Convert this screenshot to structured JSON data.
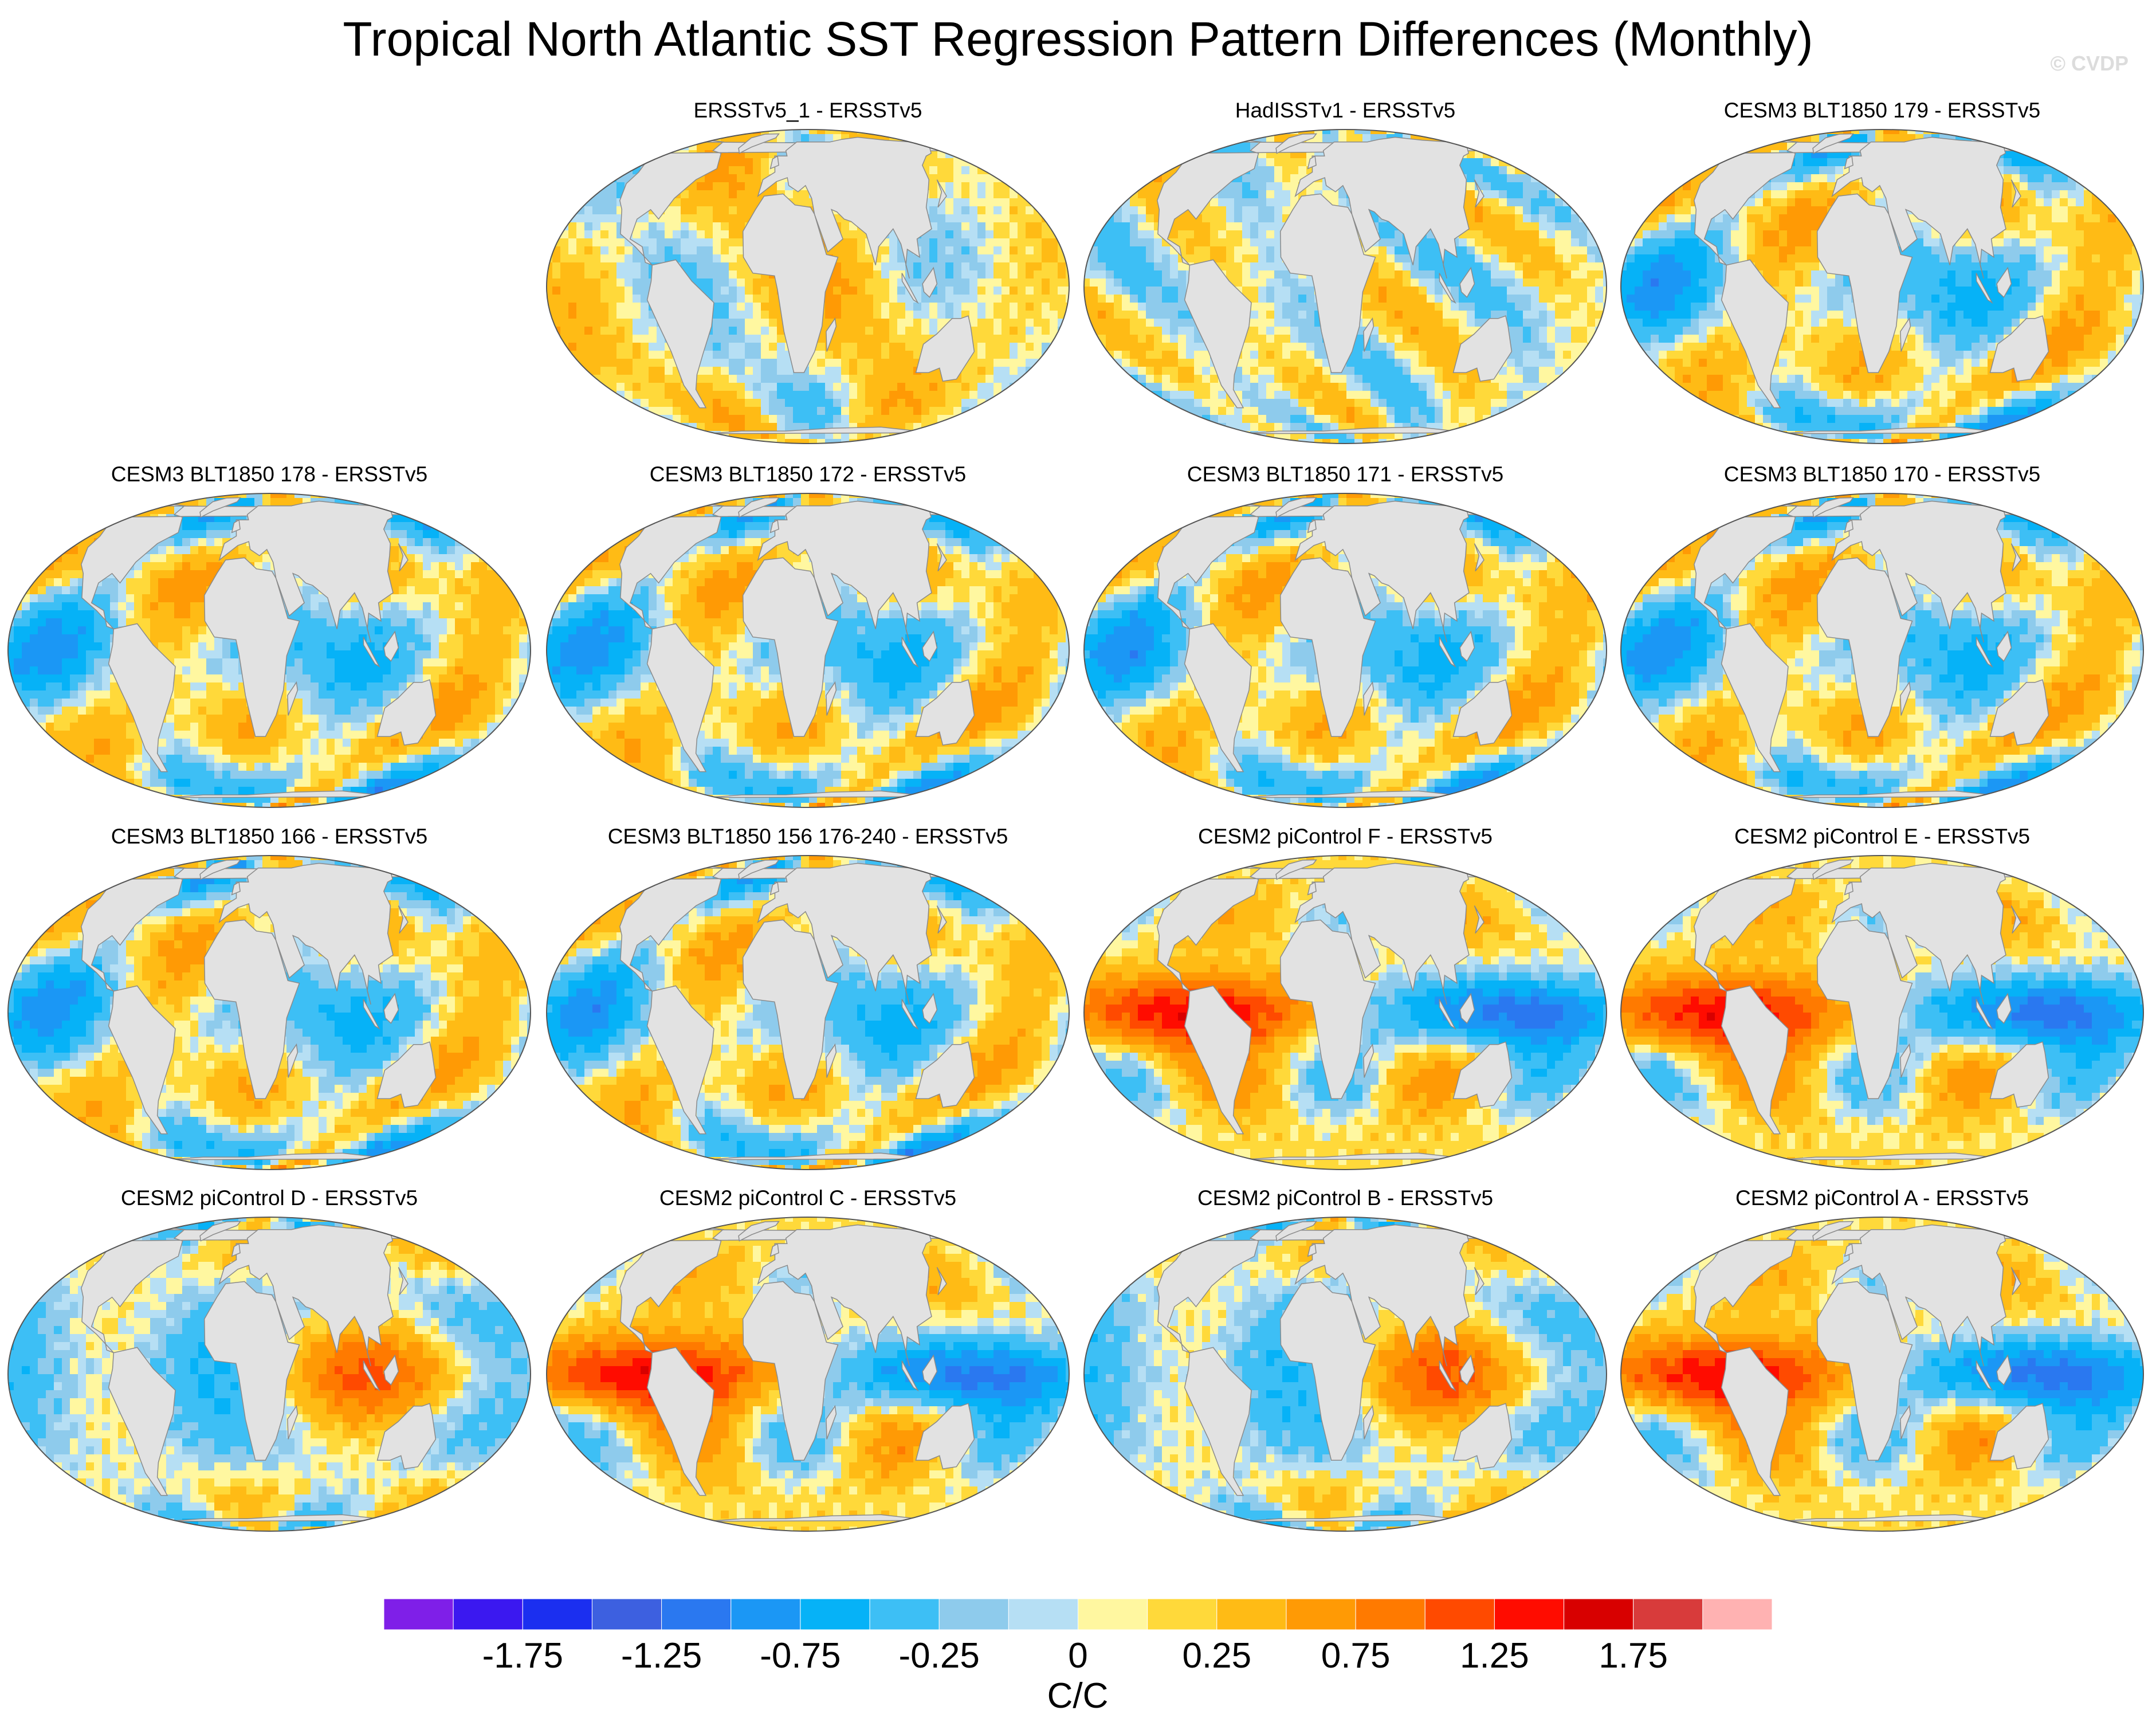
{
  "title": "Tropical North Atlantic SST Regression Pattern Differences (Monthly)",
  "watermark": "© CVDP",
  "panels": [
    {
      "title": "ERSSTv5_1 - ERSSTv5",
      "pattern": 0
    },
    {
      "title": "HadISSTv1 - ERSSTv5",
      "pattern": 1
    },
    {
      "title": "CESM3 BLT1850 179 - ERSSTv5",
      "pattern": 2
    },
    {
      "title": "CESM3 BLT1850 178 - ERSSTv5",
      "pattern": 2
    },
    {
      "title": "CESM3 BLT1850 172 - ERSSTv5",
      "pattern": 2
    },
    {
      "title": "CESM3 BLT1850 171 - ERSSTv5",
      "pattern": 2
    },
    {
      "title": "CESM3 BLT1850 170 - ERSSTv5",
      "pattern": 2
    },
    {
      "title": "CESM3 BLT1850 166 - ERSSTv5",
      "pattern": 2
    },
    {
      "title": "CESM3 BLT1850 156 176-240 - ERSSTv5",
      "pattern": 2
    },
    {
      "title": "CESM2 piControl F - ERSSTv5",
      "pattern": 3
    },
    {
      "title": "CESM2 piControl E - ERSSTv5",
      "pattern": 3
    },
    {
      "title": "CESM2 piControl D - ERSSTv5",
      "pattern": 4
    },
    {
      "title": "CESM2 piControl C - ERSSTv5",
      "pattern": 3
    },
    {
      "title": "CESM2 piControl B - ERSSTv5",
      "pattern": 4
    },
    {
      "title": "CESM2 piControl A - ERSSTv5",
      "pattern": 3
    }
  ],
  "colorbar": {
    "colors": [
      "#7f1fe8",
      "#3b18f0",
      "#1b2ff0",
      "#3d60e0",
      "#2a78f0",
      "#1b97f5",
      "#06b2f7",
      "#3dbff5",
      "#8ecbec",
      "#b6dff4",
      "#fff7a0",
      "#ffd93a",
      "#ffbb15",
      "#ff9a05",
      "#ff7a00",
      "#ff4a00",
      "#ff0c00",
      "#d80000",
      "#d83b3b",
      "#ffb2b2"
    ],
    "tick_labels": [
      "-1.75",
      "-1.25",
      "-0.75",
      "-0.25",
      "0",
      "0.25",
      "0.75",
      "1.25",
      "1.75"
    ],
    "units": "C/C"
  }
}
